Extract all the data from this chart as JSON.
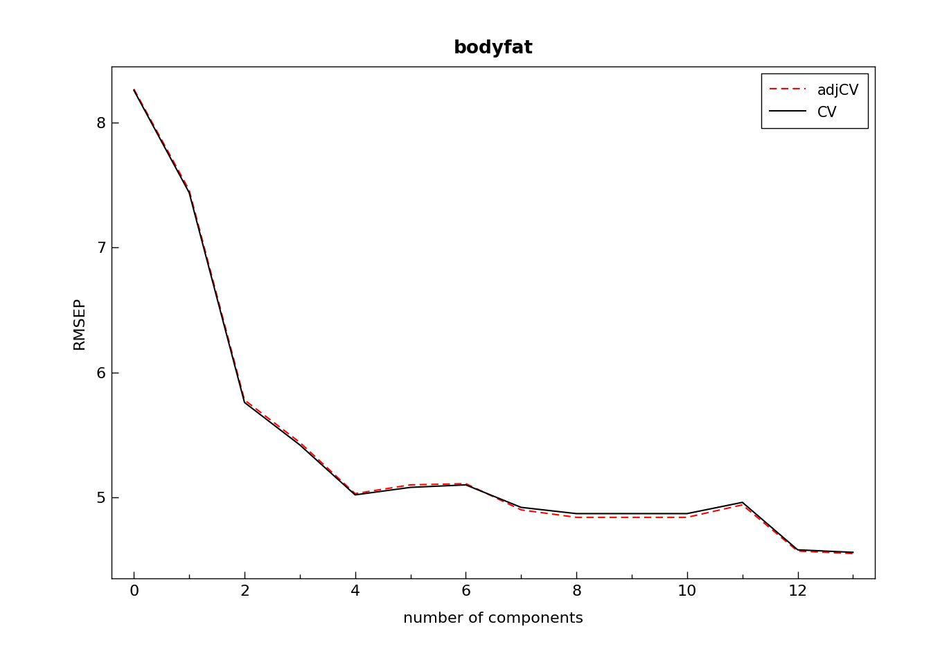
{
  "title": "bodyfat",
  "xlabel": "number of components",
  "ylabel": "RMSEP",
  "x": [
    0,
    1,
    2,
    3,
    4,
    5,
    6,
    7,
    8,
    9,
    10,
    11,
    12,
    13
  ],
  "cv": [
    8.26,
    7.44,
    5.76,
    5.42,
    5.02,
    5.08,
    5.1,
    4.92,
    4.87,
    4.87,
    4.87,
    4.96,
    4.58,
    4.56
  ],
  "adjcv": [
    8.27,
    7.46,
    5.78,
    5.44,
    5.03,
    5.1,
    5.11,
    4.9,
    4.84,
    4.84,
    4.84,
    4.94,
    4.57,
    4.55
  ],
  "cv_color": "#000000",
  "adjcv_color": "#FF0000",
  "cv_linestyle": "solid",
  "adjcv_linestyle": "dashed",
  "cv_linewidth": 1.5,
  "adjcv_linewidth": 1.5,
  "ylim_bottom": 4.35,
  "ylim_top": 8.45,
  "xlim_left": -0.4,
  "xlim_right": 13.4,
  "yticks": [
    5,
    6,
    7,
    8
  ],
  "xticks": [
    0,
    2,
    4,
    6,
    8,
    10,
    12
  ],
  "xticks_minor": [
    1,
    3,
    5,
    7,
    9,
    11,
    13
  ],
  "title_fontsize": 19,
  "label_fontsize": 16,
  "tick_fontsize": 16,
  "legend_fontsize": 15,
  "background_color": "#ffffff",
  "legend_loc": "upper right"
}
